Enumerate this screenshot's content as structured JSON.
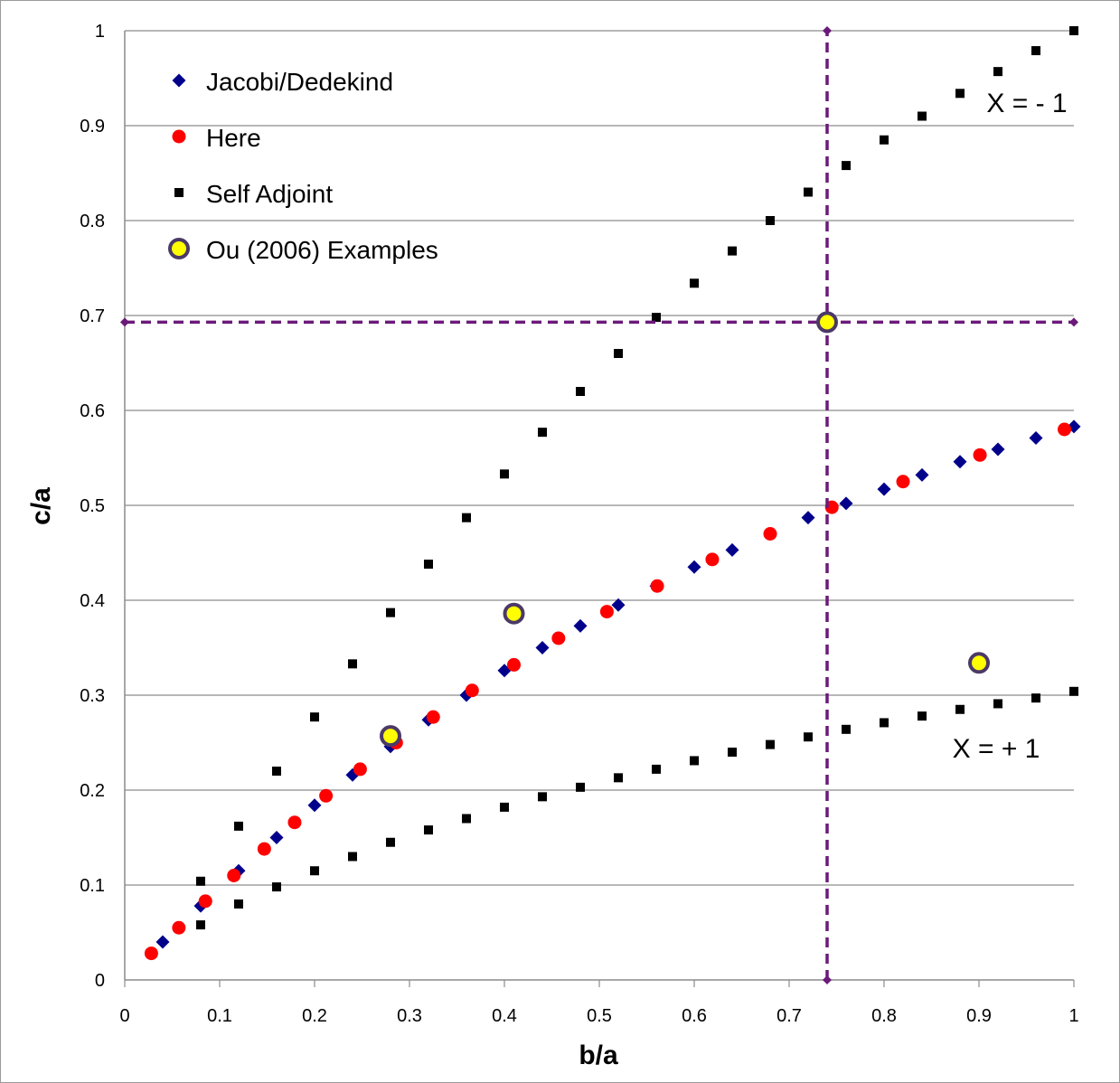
{
  "chart_data": {
    "type": "scatter",
    "xlabel": "b/a",
    "ylabel": "c/a",
    "xlim": [
      0,
      1
    ],
    "ylim": [
      0,
      1
    ],
    "x_ticks": [
      "0",
      "0.1",
      "0.2",
      "0.3",
      "0.4",
      "0.5",
      "0.6",
      "0.7",
      "0.8",
      "0.9",
      "1"
    ],
    "y_ticks": [
      "0",
      "0.1",
      "0.2",
      "0.3",
      "0.4",
      "0.5",
      "0.6",
      "0.7",
      "0.8",
      "0.9",
      "1"
    ],
    "grid": "horizontal",
    "legend_position": "top-left",
    "series": [
      {
        "name": "Jacobi/Dedekind",
        "marker": "diamond",
        "color": "#00008b",
        "points": [
          [
            0.04,
            0.04
          ],
          [
            0.08,
            0.078
          ],
          [
            0.12,
            0.115
          ],
          [
            0.16,
            0.15
          ],
          [
            0.2,
            0.184
          ],
          [
            0.24,
            0.216
          ],
          [
            0.28,
            0.246
          ],
          [
            0.32,
            0.274
          ],
          [
            0.36,
            0.3
          ],
          [
            0.4,
            0.326
          ],
          [
            0.44,
            0.35
          ],
          [
            0.48,
            0.373
          ],
          [
            0.52,
            0.395
          ],
          [
            0.56,
            0.415
          ],
          [
            0.6,
            0.435
          ],
          [
            0.64,
            0.453
          ],
          [
            0.68,
            0.47
          ],
          [
            0.72,
            0.487
          ],
          [
            0.76,
            0.502
          ],
          [
            0.8,
            0.517
          ],
          [
            0.84,
            0.532
          ],
          [
            0.88,
            0.546
          ],
          [
            0.92,
            0.559
          ],
          [
            0.96,
            0.571
          ],
          [
            1.0,
            0.583
          ]
        ]
      },
      {
        "name": "Here",
        "marker": "circle",
        "color": "#ff0000",
        "points": [
          [
            0.028,
            0.028
          ],
          [
            0.057,
            0.055
          ],
          [
            0.085,
            0.083
          ],
          [
            0.115,
            0.11
          ],
          [
            0.147,
            0.138
          ],
          [
            0.179,
            0.166
          ],
          [
            0.212,
            0.194
          ],
          [
            0.248,
            0.222
          ],
          [
            0.286,
            0.25
          ],
          [
            0.325,
            0.277
          ],
          [
            0.366,
            0.305
          ],
          [
            0.41,
            0.332
          ],
          [
            0.457,
            0.36
          ],
          [
            0.508,
            0.388
          ],
          [
            0.561,
            0.415
          ],
          [
            0.619,
            0.443
          ],
          [
            0.68,
            0.47
          ],
          [
            0.745,
            0.498
          ],
          [
            0.82,
            0.525
          ],
          [
            0.901,
            0.553
          ],
          [
            0.99,
            0.58
          ]
        ]
      },
      {
        "name": " Self Adjoint",
        "marker": "square",
        "color": "#000000",
        "points": [
          [
            0.08,
            0.104
          ],
          [
            0.12,
            0.162
          ],
          [
            0.16,
            0.22
          ],
          [
            0.2,
            0.277
          ],
          [
            0.24,
            0.333
          ],
          [
            0.28,
            0.387
          ],
          [
            0.32,
            0.438
          ],
          [
            0.36,
            0.487
          ],
          [
            0.4,
            0.533
          ],
          [
            0.44,
            0.577
          ],
          [
            0.48,
            0.62
          ],
          [
            0.52,
            0.66
          ],
          [
            0.56,
            0.698
          ],
          [
            0.6,
            0.734
          ],
          [
            0.64,
            0.768
          ],
          [
            0.68,
            0.8
          ],
          [
            0.72,
            0.83
          ],
          [
            0.76,
            0.858
          ],
          [
            0.8,
            0.885
          ],
          [
            0.84,
            0.91
          ],
          [
            0.88,
            0.934
          ],
          [
            0.92,
            0.957
          ],
          [
            0.96,
            0.979
          ],
          [
            1.0,
            1.0
          ],
          [
            0.08,
            0.058
          ],
          [
            0.12,
            0.08
          ],
          [
            0.16,
            0.098
          ],
          [
            0.2,
            0.115
          ],
          [
            0.24,
            0.13
          ],
          [
            0.28,
            0.145
          ],
          [
            0.32,
            0.158
          ],
          [
            0.36,
            0.17
          ],
          [
            0.4,
            0.182
          ],
          [
            0.44,
            0.193
          ],
          [
            0.48,
            0.203
          ],
          [
            0.52,
            0.213
          ],
          [
            0.56,
            0.222
          ],
          [
            0.6,
            0.231
          ],
          [
            0.64,
            0.24
          ],
          [
            0.68,
            0.248
          ],
          [
            0.72,
            0.256
          ],
          [
            0.76,
            0.264
          ],
          [
            0.8,
            0.271
          ],
          [
            0.84,
            0.278
          ],
          [
            0.88,
            0.285
          ],
          [
            0.92,
            0.291
          ],
          [
            0.96,
            0.297
          ],
          [
            1.0,
            0.304
          ]
        ]
      },
      {
        "name": "Ou (2006) Examples",
        "marker": "ringed-circle",
        "color": "#ffff00",
        "edge_color": "#4b3a66",
        "points": [
          [
            0.28,
            0.257
          ],
          [
            0.41,
            0.386
          ],
          [
            0.74,
            0.693
          ],
          [
            0.9,
            0.334
          ]
        ]
      }
    ],
    "reference_lines": [
      {
        "orientation": "horizontal",
        "value": 0.693,
        "from": 0,
        "to": 1,
        "style": "dashed",
        "color": "#6b1a7a"
      },
      {
        "orientation": "vertical",
        "value": 0.74,
        "from": 0,
        "to": 1,
        "style": "dashed",
        "color": "#6b1a7a"
      }
    ],
    "annotations": [
      {
        "text": "X = - 1",
        "x": 1.0,
        "y": 0.925
      },
      {
        "text": "X = + 1",
        "x": 0.91,
        "y": 0.24
      }
    ]
  }
}
